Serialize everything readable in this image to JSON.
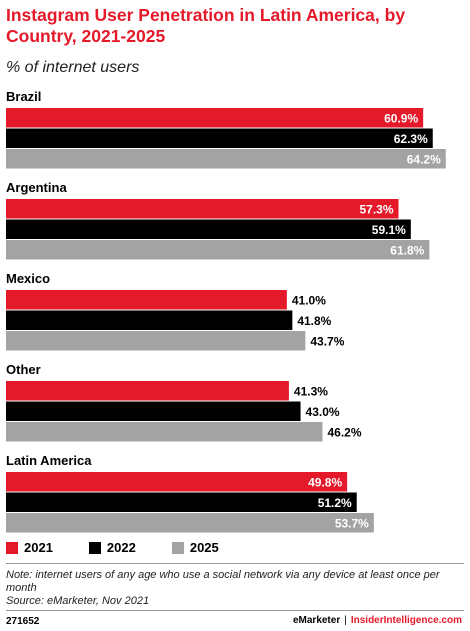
{
  "header": {
    "title": "Instagram User Penetration in Latin America, by Country, 2021-2025",
    "subtitle": "% of internet users"
  },
  "colors": {
    "2021": "#e4192a",
    "2022": "#000000",
    "2025": "#a3a3a3",
    "title": "#e4192a"
  },
  "chart_data": {
    "type": "bar",
    "orientation": "horizontal",
    "categories": [
      "Brazil",
      "Argentina",
      "Mexico",
      "Other",
      "Latin America"
    ],
    "series": [
      {
        "name": "2021",
        "values": [
          60.9,
          57.3,
          41.0,
          41.3,
          49.8
        ]
      },
      {
        "name": "2022",
        "values": [
          62.3,
          59.1,
          41.8,
          43.0,
          51.2
        ]
      },
      {
        "name": "2025",
        "values": [
          64.2,
          61.8,
          43.7,
          46.2,
          53.7
        ]
      }
    ],
    "value_suffix": "%",
    "legend_position": "bottom-left",
    "grid": false
  },
  "footer": {
    "note": "Note: internet users of any age who use a social network via any device at least once per month",
    "source": "Source: eMarketer, Nov 2021",
    "id": "271652",
    "brand_left": "eMarketer",
    "separator": "|",
    "brand_right": "InsiderIntelligence.com"
  }
}
